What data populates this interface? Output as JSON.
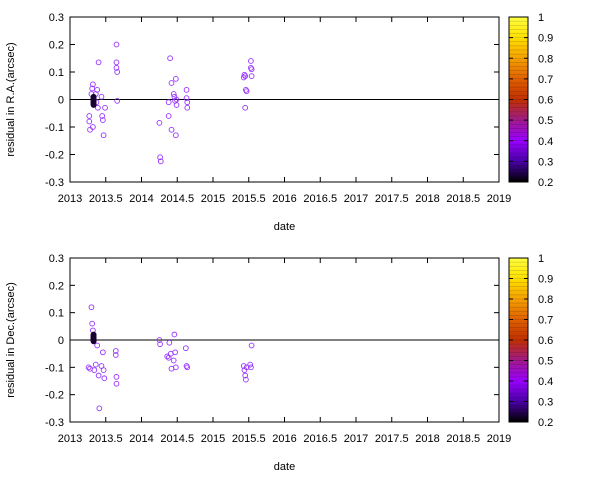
{
  "chart_data": [
    {
      "type": "scatter",
      "xlabel": "date",
      "ylabel": "residual in R.A.(arcsec)",
      "xlim": [
        2013,
        2019
      ],
      "ylim": [
        -0.3,
        0.3
      ],
      "x_ticks": [
        "2013",
        "2013.5",
        "2014",
        "2014.5",
        "2015",
        "2015.5",
        "2016",
        "2016.5",
        "2017",
        "2017.5",
        "2018",
        "2018.5",
        "2019"
      ],
      "y_ticks": [
        "-0.3",
        "-0.2",
        "-0.1",
        "0",
        "0.1",
        "0.2",
        "0.3"
      ],
      "zero_line": true,
      "grid": false,
      "colorbar": {
        "range": [
          0.2,
          1.0
        ],
        "ticks": [
          "0.2",
          "0.3",
          "0.4",
          "0.5",
          "0.6",
          "0.7",
          "0.8",
          "0.9",
          "1"
        ],
        "palette": [
          "#000000",
          "#4a00a8",
          "#9a00ff",
          "#a01a8a",
          "#c03000",
          "#e06000",
          "#f5a000",
          "#ffe000",
          "#ffff40"
        ]
      },
      "point_color": "#9933ff",
      "points": [
        {
          "x": 2013.27,
          "y": -0.06
        },
        {
          "x": 2013.27,
          "y": -0.08
        },
        {
          "x": 2013.28,
          "y": -0.11
        },
        {
          "x": 2013.3,
          "y": 0.02
        },
        {
          "x": 2013.31,
          "y": 0.04
        },
        {
          "x": 2013.32,
          "y": 0.055
        },
        {
          "x": 2013.32,
          "y": -0.1
        },
        {
          "x": 2013.36,
          "y": 0.02
        },
        {
          "x": 2013.37,
          "y": -0.01
        },
        {
          "x": 2013.38,
          "y": 0.035
        },
        {
          "x": 2013.39,
          "y": -0.03
        },
        {
          "x": 2013.4,
          "y": 0.135
        },
        {
          "x": 2013.44,
          "y": 0.01
        },
        {
          "x": 2013.45,
          "y": -0.06
        },
        {
          "x": 2013.46,
          "y": -0.075
        },
        {
          "x": 2013.47,
          "y": -0.13
        },
        {
          "x": 2013.49,
          "y": -0.03
        },
        {
          "x": 2013.65,
          "y": 0.2
        },
        {
          "x": 2013.65,
          "y": 0.135
        },
        {
          "x": 2013.65,
          "y": 0.115
        },
        {
          "x": 2013.66,
          "y": 0.1
        },
        {
          "x": 2013.66,
          "y": -0.005
        },
        {
          "x": 2014.25,
          "y": -0.085
        },
        {
          "x": 2014.26,
          "y": -0.21
        },
        {
          "x": 2014.27,
          "y": -0.225
        },
        {
          "x": 2014.38,
          "y": -0.01
        },
        {
          "x": 2014.38,
          "y": -0.06
        },
        {
          "x": 2014.4,
          "y": 0.15
        },
        {
          "x": 2014.42,
          "y": -0.11
        },
        {
          "x": 2014.42,
          "y": 0.06
        },
        {
          "x": 2014.45,
          "y": 0.02
        },
        {
          "x": 2014.46,
          "y": 0.01
        },
        {
          "x": 2014.47,
          "y": -0.005
        },
        {
          "x": 2014.48,
          "y": 0.075
        },
        {
          "x": 2014.48,
          "y": -0.13
        },
        {
          "x": 2014.49,
          "y": 0.0
        },
        {
          "x": 2014.49,
          "y": -0.02
        },
        {
          "x": 2014.63,
          "y": 0.035
        },
        {
          "x": 2014.63,
          "y": 0.005
        },
        {
          "x": 2014.64,
          "y": -0.01
        },
        {
          "x": 2014.64,
          "y": -0.03
        },
        {
          "x": 2015.43,
          "y": 0.08
        },
        {
          "x": 2015.44,
          "y": 0.09
        },
        {
          "x": 2015.45,
          "y": 0.085
        },
        {
          "x": 2015.46,
          "y": 0.035
        },
        {
          "x": 2015.47,
          "y": 0.03
        },
        {
          "x": 2015.45,
          "y": -0.03
        },
        {
          "x": 2015.53,
          "y": 0.14
        },
        {
          "x": 2015.53,
          "y": 0.115
        },
        {
          "x": 2015.54,
          "y": 0.11
        },
        {
          "x": 2015.54,
          "y": 0.085
        }
      ],
      "dense_cluster": {
        "x": 2013.33,
        "y_min": -0.02,
        "y_max": 0.01,
        "count": 18,
        "color": "#1a0033"
      }
    },
    {
      "type": "scatter",
      "xlabel": "date",
      "ylabel": "residual in Dec.(arcsec)",
      "xlim": [
        2013,
        2019
      ],
      "ylim": [
        -0.3,
        0.3
      ],
      "x_ticks": [
        "2013",
        "2013.5",
        "2014",
        "2014.5",
        "2015",
        "2015.5",
        "2016",
        "2016.5",
        "2017",
        "2017.5",
        "2018",
        "2018.5",
        "2019"
      ],
      "y_ticks": [
        "-0.3",
        "-0.2",
        "-0.1",
        "0",
        "0.1",
        "0.2",
        "0.3"
      ],
      "zero_line": true,
      "grid": false,
      "colorbar": {
        "range": [
          0.2,
          1.0
        ],
        "ticks": [
          "0.2",
          "0.3",
          "0.4",
          "0.5",
          "0.6",
          "0.7",
          "0.8",
          "0.9",
          "1"
        ],
        "palette": [
          "#000000",
          "#4a00a8",
          "#9a00ff",
          "#a01a8a",
          "#c03000",
          "#e06000",
          "#f5a000",
          "#ffe000",
          "#ffff40"
        ]
      },
      "point_color": "#9933ff",
      "points": [
        {
          "x": 2013.26,
          "y": -0.1
        },
        {
          "x": 2013.28,
          "y": -0.105
        },
        {
          "x": 2013.3,
          "y": 0.12
        },
        {
          "x": 2013.31,
          "y": 0.06
        },
        {
          "x": 2013.32,
          "y": 0.035
        },
        {
          "x": 2013.34,
          "y": -0.11
        },
        {
          "x": 2013.36,
          "y": -0.09
        },
        {
          "x": 2013.38,
          "y": -0.02
        },
        {
          "x": 2013.4,
          "y": -0.13
        },
        {
          "x": 2013.41,
          "y": -0.25
        },
        {
          "x": 2013.44,
          "y": -0.095
        },
        {
          "x": 2013.46,
          "y": -0.045
        },
        {
          "x": 2013.47,
          "y": -0.11
        },
        {
          "x": 2013.48,
          "y": -0.14
        },
        {
          "x": 2013.64,
          "y": -0.04
        },
        {
          "x": 2013.64,
          "y": -0.055
        },
        {
          "x": 2013.65,
          "y": -0.135
        },
        {
          "x": 2013.65,
          "y": -0.16
        },
        {
          "x": 2014.25,
          "y": 0.0
        },
        {
          "x": 2014.26,
          "y": -0.015
        },
        {
          "x": 2014.36,
          "y": -0.06
        },
        {
          "x": 2014.38,
          "y": -0.065
        },
        {
          "x": 2014.39,
          "y": -0.01
        },
        {
          "x": 2014.41,
          "y": -0.05
        },
        {
          "x": 2014.42,
          "y": -0.105
        },
        {
          "x": 2014.45,
          "y": -0.075
        },
        {
          "x": 2014.46,
          "y": 0.02
        },
        {
          "x": 2014.47,
          "y": -0.045
        },
        {
          "x": 2014.48,
          "y": -0.1
        },
        {
          "x": 2014.62,
          "y": -0.03
        },
        {
          "x": 2014.63,
          "y": -0.095
        },
        {
          "x": 2014.64,
          "y": -0.1
        },
        {
          "x": 2015.43,
          "y": -0.095
        },
        {
          "x": 2015.44,
          "y": -0.11
        },
        {
          "x": 2015.45,
          "y": -0.13
        },
        {
          "x": 2015.46,
          "y": -0.145
        },
        {
          "x": 2015.47,
          "y": -0.1
        },
        {
          "x": 2015.52,
          "y": -0.09
        },
        {
          "x": 2015.53,
          "y": -0.1
        },
        {
          "x": 2015.54,
          "y": -0.02
        }
      ],
      "dense_cluster": {
        "x": 2013.33,
        "y_min": -0.005,
        "y_max": 0.02,
        "count": 18,
        "color": "#1a0033"
      }
    }
  ]
}
